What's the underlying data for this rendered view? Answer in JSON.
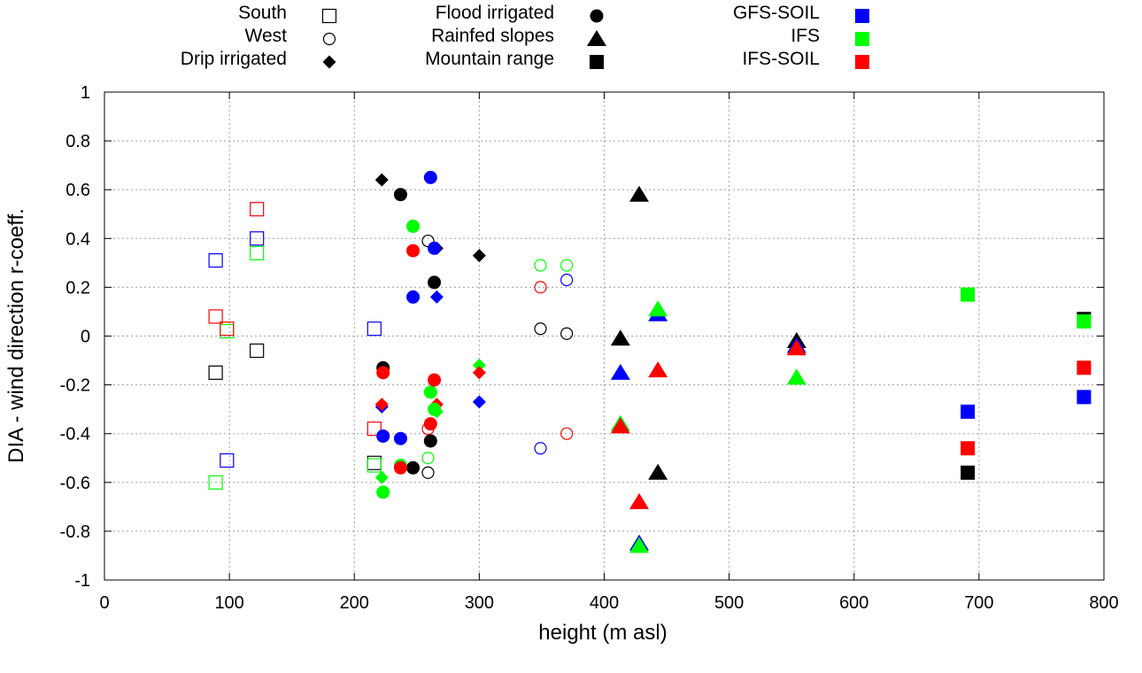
{
  "chart_data": {
    "type": "scatter",
    "xlabel": "height (m asl)",
    "ylabel": "DIA - wind direction r-coeff.",
    "xlim": [
      0,
      800
    ],
    "ylim": [
      -1,
      1
    ],
    "xticks": [
      0,
      100,
      200,
      300,
      400,
      500,
      600,
      700,
      800
    ],
    "yticks": [
      -1,
      -0.8,
      -0.6,
      -0.4,
      -0.2,
      0,
      0.2,
      0.4,
      0.6,
      0.8,
      1
    ],
    "xtick_labels": [
      "0",
      "100",
      "200",
      "300",
      "400",
      "500",
      "600",
      "700",
      "800"
    ],
    "ytick_labels": [
      "-1",
      "-0.8",
      "-0.6",
      "-0.4",
      "-0.2",
      "0",
      "0.2",
      "0.4",
      "0.6",
      "0.8",
      "1"
    ],
    "grid": true,
    "legend_regions": [
      {
        "label": "South",
        "shape": "open-square"
      },
      {
        "label": "West",
        "shape": "open-circle"
      },
      {
        "label": "Drip irrigated",
        "shape": "diamond"
      },
      {
        "label": "Flood irrigated",
        "shape": "circle"
      },
      {
        "label": "Rainfed slopes",
        "shape": "triangle"
      },
      {
        "label": "Mountain range",
        "shape": "square"
      }
    ],
    "legend_models": [
      {
        "label": "GFS-SOIL",
        "color": "#0000ff"
      },
      {
        "label": "IFS",
        "color": "#00ff00"
      },
      {
        "label": "IFS-SOIL",
        "color": "#ff0000"
      }
    ],
    "series": [
      {
        "region": "South",
        "model": "GFS",
        "color": "#000000",
        "shape": "open-square",
        "points": [
          [
            89,
            -0.15
          ],
          [
            122,
            -0.06
          ],
          [
            216,
            -0.52
          ]
        ]
      },
      {
        "region": "South",
        "model": "GFS-SOIL",
        "color": "#0000ff",
        "shape": "open-square",
        "points": [
          [
            89,
            0.31
          ],
          [
            98,
            -0.51
          ],
          [
            122,
            0.4
          ],
          [
            216,
            0.03
          ]
        ]
      },
      {
        "region": "South",
        "model": "IFS",
        "color": "#00ff00",
        "shape": "open-square",
        "points": [
          [
            89,
            -0.6
          ],
          [
            98,
            0.02
          ],
          [
            122,
            0.34
          ],
          [
            216,
            -0.53
          ]
        ]
      },
      {
        "region": "South",
        "model": "IFS-SOIL",
        "color": "#ff0000",
        "shape": "open-square",
        "points": [
          [
            89,
            0.08
          ],
          [
            98,
            0.03
          ],
          [
            122,
            0.52
          ],
          [
            216,
            -0.38
          ]
        ]
      },
      {
        "region": "West",
        "model": "GFS",
        "color": "#000000",
        "shape": "open-circle",
        "points": [
          [
            259,
            0.39
          ],
          [
            349,
            0.03
          ],
          [
            370,
            0.01
          ],
          [
            259,
            -0.56
          ]
        ]
      },
      {
        "region": "West",
        "model": "GFS-SOIL",
        "color": "#0000ff",
        "shape": "open-circle",
        "points": [
          [
            370,
            0.23
          ],
          [
            349,
            -0.46
          ]
        ]
      },
      {
        "region": "West",
        "model": "IFS",
        "color": "#00ff00",
        "shape": "open-circle",
        "points": [
          [
            349,
            0.29
          ],
          [
            370,
            0.29
          ],
          [
            259,
            -0.5
          ]
        ]
      },
      {
        "region": "West",
        "model": "IFS-SOIL",
        "color": "#ff0000",
        "shape": "open-circle",
        "points": [
          [
            349,
            0.2
          ],
          [
            370,
            -0.4
          ],
          [
            259,
            -0.38
          ]
        ]
      },
      {
        "region": "Drip irrigated",
        "model": "GFS",
        "color": "#000000",
        "shape": "diamond",
        "points": [
          [
            222,
            0.64
          ],
          [
            266,
            0.36
          ],
          [
            300,
            0.33
          ]
        ]
      },
      {
        "region": "Drip irrigated",
        "model": "GFS-SOIL",
        "color": "#0000ff",
        "shape": "diamond",
        "points": [
          [
            266,
            0.16
          ],
          [
            300,
            -0.27
          ],
          [
            222,
            -0.29
          ]
        ]
      },
      {
        "region": "Drip irrigated",
        "model": "IFS",
        "color": "#00ff00",
        "shape": "diamond",
        "points": [
          [
            300,
            -0.12
          ],
          [
            266,
            -0.31
          ],
          [
            222,
            -0.58
          ]
        ]
      },
      {
        "region": "Drip irrigated",
        "model": "IFS-SOIL",
        "color": "#ff0000",
        "shape": "diamond",
        "points": [
          [
            300,
            -0.15
          ],
          [
            266,
            -0.28
          ],
          [
            222,
            -0.28
          ]
        ]
      },
      {
        "region": "Flood irrigated",
        "model": "GFS",
        "color": "#000000",
        "shape": "circle",
        "points": [
          [
            237,
            0.58
          ],
          [
            264,
            0.22
          ],
          [
            223,
            -0.13
          ],
          [
            261,
            -0.43
          ],
          [
            247,
            -0.54
          ]
        ]
      },
      {
        "region": "Flood irrigated",
        "model": "GFS-SOIL",
        "color": "#0000ff",
        "shape": "circle",
        "points": [
          [
            261,
            0.65
          ],
          [
            264,
            0.36
          ],
          [
            247,
            0.16
          ],
          [
            223,
            -0.41
          ],
          [
            237,
            -0.42
          ]
        ]
      },
      {
        "region": "Flood irrigated",
        "model": "IFS",
        "color": "#00ff00",
        "shape": "circle",
        "points": [
          [
            247,
            0.45
          ],
          [
            261,
            -0.23
          ],
          [
            264,
            -0.3
          ],
          [
            237,
            -0.53
          ],
          [
            223,
            -0.64
          ]
        ]
      },
      {
        "region": "Flood irrigated",
        "model": "IFS-SOIL",
        "color": "#ff0000",
        "shape": "circle",
        "points": [
          [
            247,
            0.35
          ],
          [
            223,
            -0.15
          ],
          [
            264,
            -0.18
          ],
          [
            261,
            -0.36
          ],
          [
            237,
            -0.54
          ]
        ]
      },
      {
        "region": "Rainfed slopes",
        "model": "GFS",
        "color": "#000000",
        "shape": "triangle",
        "points": [
          [
            428,
            0.58
          ],
          [
            413,
            -0.01
          ],
          [
            554,
            -0.02
          ],
          [
            443,
            -0.56
          ]
        ]
      },
      {
        "region": "Rainfed slopes",
        "model": "GFS-SOIL",
        "color": "#0000ff",
        "shape": "triangle",
        "points": [
          [
            443,
            0.09
          ],
          [
            413,
            -0.15
          ],
          [
            554,
            -0.04
          ],
          [
            428,
            -0.85
          ]
        ]
      },
      {
        "region": "Rainfed slopes",
        "model": "IFS",
        "color": "#00ff00",
        "shape": "triangle",
        "points": [
          [
            443,
            0.11
          ],
          [
            554,
            -0.17
          ],
          [
            413,
            -0.36
          ],
          [
            428,
            -0.86
          ]
        ]
      },
      {
        "region": "Rainfed slopes",
        "model": "IFS-SOIL",
        "color": "#ff0000",
        "shape": "triangle",
        "points": [
          [
            554,
            -0.05
          ],
          [
            443,
            -0.14
          ],
          [
            413,
            -0.37
          ],
          [
            428,
            -0.68
          ]
        ]
      },
      {
        "region": "Mountain range",
        "model": "GFS",
        "color": "#000000",
        "shape": "square",
        "points": [
          [
            784,
            0.07
          ],
          [
            691,
            -0.56
          ]
        ]
      },
      {
        "region": "Mountain range",
        "model": "GFS-SOIL",
        "color": "#0000ff",
        "shape": "square",
        "points": [
          [
            691,
            -0.31
          ],
          [
            784,
            -0.25
          ]
        ]
      },
      {
        "region": "Mountain range",
        "model": "IFS",
        "color": "#00ff00",
        "shape": "square",
        "points": [
          [
            691,
            0.17
          ],
          [
            784,
            0.06
          ]
        ]
      },
      {
        "region": "Mountain range",
        "model": "IFS-SOIL",
        "color": "#ff0000",
        "shape": "square",
        "points": [
          [
            784,
            -0.13
          ],
          [
            691,
            -0.46
          ]
        ]
      }
    ]
  }
}
